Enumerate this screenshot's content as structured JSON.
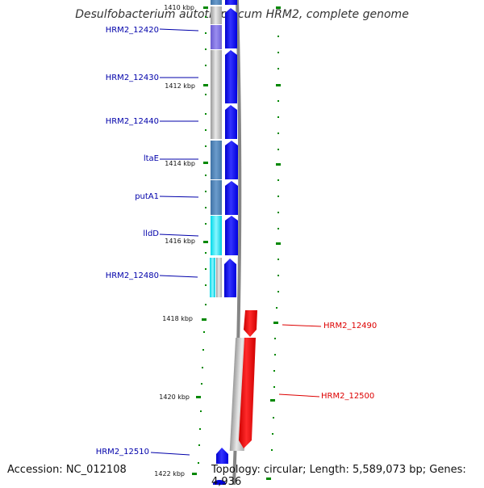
{
  "title": "Desulfobacterium autotrophicum HRM2, complete genome",
  "footer": {
    "accession": "Accession: NC_012108",
    "topology": "Topology: circular; Length: 5,589,073 bp; Genes: 4,936"
  },
  "scale": {
    "ticks": [
      "1410 kbp",
      "1412 kbp",
      "1414 kbp",
      "1416 kbp",
      "1418 kbp",
      "1420 kbp",
      "1422 kbp"
    ]
  },
  "colors": {
    "reverse_strand": "#0000ff",
    "forward_strand": "#ff0000",
    "tick": "#008800",
    "backbone": "#888888"
  },
  "genes": [
    {
      "name": "HRM2_12420",
      "strand": "left",
      "color": "#0000aa"
    },
    {
      "name": "HRM2_12430",
      "strand": "left",
      "color": "#0000aa"
    },
    {
      "name": "HRM2_12440",
      "strand": "left",
      "color": "#0000aa"
    },
    {
      "name": "ltaE",
      "strand": "left",
      "color": "#0000aa"
    },
    {
      "name": "putA1",
      "strand": "left",
      "color": "#0000aa"
    },
    {
      "name": "lldD",
      "strand": "left",
      "color": "#0000aa"
    },
    {
      "name": "HRM2_12480",
      "strand": "left",
      "color": "#0000aa"
    },
    {
      "name": "HRM2_12490",
      "strand": "right",
      "color": "#dd0000"
    },
    {
      "name": "HRM2_12500",
      "strand": "right",
      "color": "#dd0000"
    },
    {
      "name": "HRM2_12510",
      "strand": "left",
      "color": "#0000aa"
    }
  ]
}
